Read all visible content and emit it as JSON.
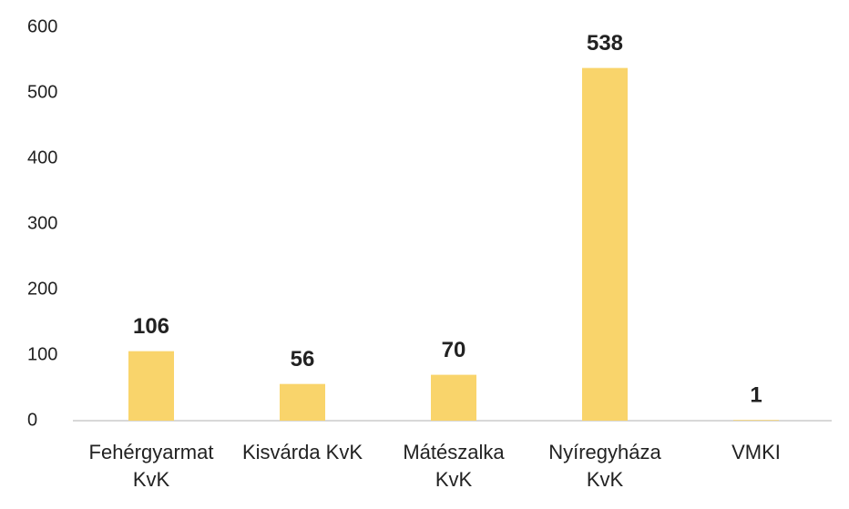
{
  "chart_data": {
    "type": "bar",
    "categories": [
      "Fehérgyarmat\nKvK",
      "Kisvárda KvK",
      "Mátészalka\nKvK",
      "Nyíregyháza\nKvK",
      "VMKI"
    ],
    "values": [
      106,
      56,
      70,
      538,
      1
    ],
    "color": "#f9d46b",
    "ylim": [
      0,
      600
    ],
    "yticks": [
      0,
      100,
      200,
      300,
      400,
      500,
      600
    ],
    "grid": false
  }
}
